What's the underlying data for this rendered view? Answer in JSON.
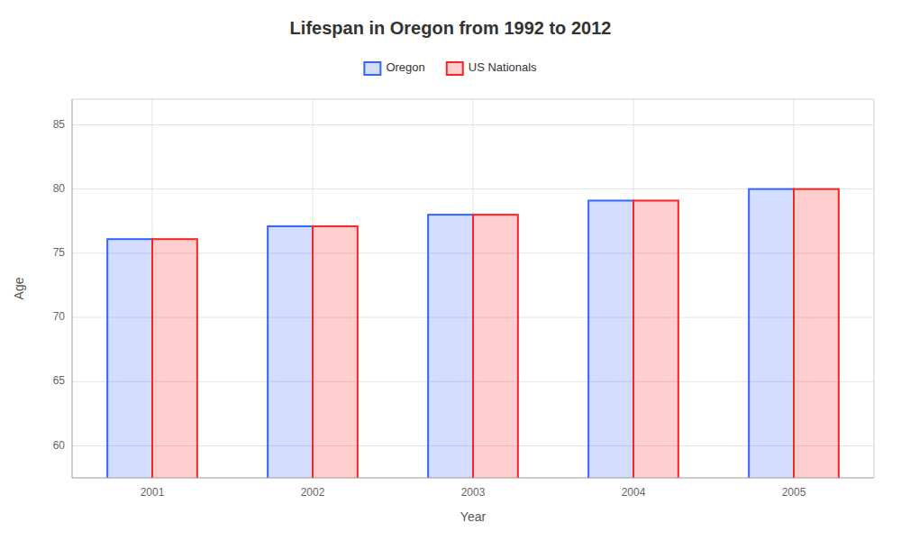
{
  "chart_data": {
    "type": "bar",
    "title": "Lifespan in Oregon from 1992 to 2012",
    "x_label": "Year",
    "y_label": "Age",
    "categories": [
      "2001",
      "2002",
      "2003",
      "2004",
      "2005"
    ],
    "series": [
      {
        "name": "Oregon",
        "color": "#3366FF",
        "values": [
          76.1,
          77.1,
          78.0,
          79.1,
          80.0
        ]
      },
      {
        "name": "US Nationals",
        "color": "#FF2222",
        "values": [
          76.1,
          77.1,
          78.0,
          79.1,
          80.0
        ]
      }
    ],
    "ylim": [
      57.5,
      87
    ],
    "yticks": [
      60,
      65,
      70,
      75,
      80,
      85
    ],
    "grid": true,
    "legend": "top"
  }
}
